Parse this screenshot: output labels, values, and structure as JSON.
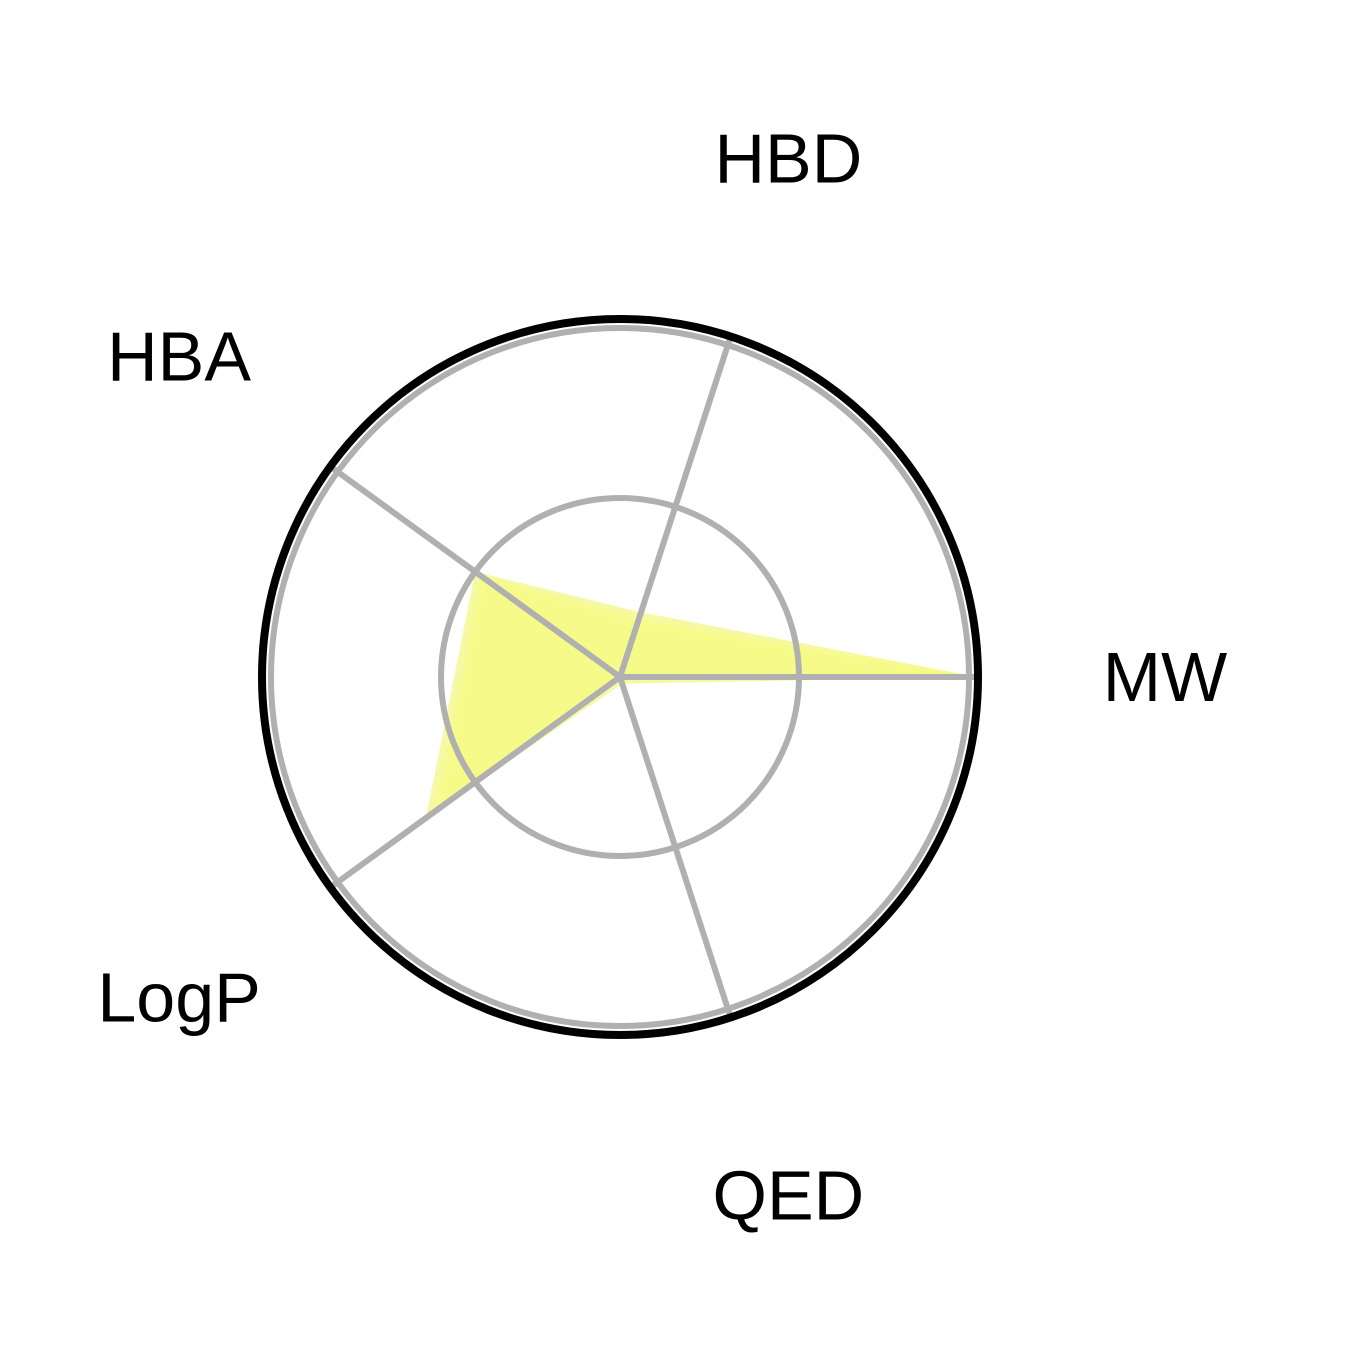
{
  "chart_data": {
    "type": "radar",
    "axes": [
      "MW",
      "HBD",
      "HBA",
      "LogP",
      "QED"
    ],
    "range": [
      0,
      1
    ],
    "grid_rings": [
      0.5
    ],
    "outer_ring": 1.0,
    "grid": true,
    "series": [
      {
        "values": [
          1.0,
          0.17,
          0.48,
          0.64,
          0.0
        ],
        "bands": [
          0.02,
          0.02,
          0.02,
          0.03,
          0.02
        ]
      }
    ],
    "colors": {
      "fill": "#f6f98a",
      "band": "#f3f77a",
      "grid": "#b0b0b0",
      "frame": "#000000"
    }
  }
}
